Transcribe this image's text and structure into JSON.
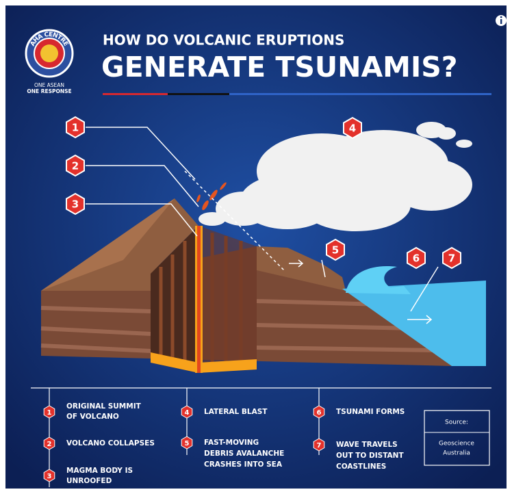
{
  "header": {
    "logo_text": "AHA CENTRE",
    "tagline": [
      "ONE ASEAN",
      "ONE RESPONSE"
    ],
    "title": "HOW DO VOLCANIC ERUPTIONS",
    "headline": "GENERATE TSUNAMIS?"
  },
  "callouts": [
    "1",
    "2",
    "3",
    "4",
    "5",
    "6",
    "7"
  ],
  "legend": [
    {
      "lines": [
        "ORIGINAL SUMMIT",
        "OF VOLCANO"
      ]
    },
    {
      "lines": [
        "VOLCANO COLLAPSES"
      ]
    },
    {
      "lines": [
        "MAGMA BODY IS",
        "UNROOFED"
      ]
    },
    {
      "lines": [
        "LATERAL BLAST"
      ]
    },
    {
      "lines": [
        "FAST-MOVING",
        "DEBRIS AVALANCHE",
        "CRASHES INTO SEA"
      ]
    },
    {
      "lines": [
        "TSUNAMI FORMS"
      ]
    },
    {
      "lines": [
        "WAVE TRAVELS",
        "OUT TO DISTANT",
        "COASTLINES"
      ]
    }
  ],
  "source": {
    "label": "Source:",
    "lines": [
      "Geoscience",
      "Australia"
    ]
  }
}
